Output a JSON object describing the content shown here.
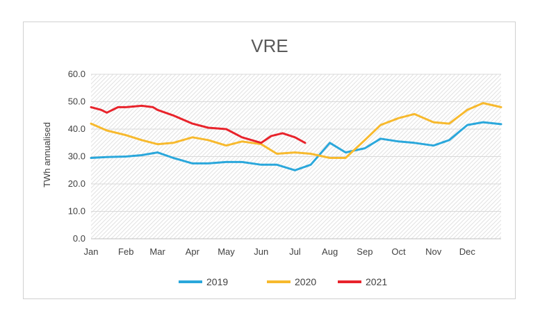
{
  "chart_data": {
    "type": "line",
    "title": "VRE",
    "xlabel": "",
    "ylabel": "TWh annualised",
    "ylim": [
      0,
      60
    ],
    "yticks": [
      "0.0",
      "10.0",
      "20.0",
      "30.0",
      "40.0",
      "50.0",
      "60.0"
    ],
    "x_axis_type": "date",
    "x_tick_labels": [
      "Jan",
      "Feb",
      "Mar",
      "Apr",
      "May",
      "Jun",
      "Jul",
      "Aug",
      "Sep",
      "Oct",
      "Nov",
      "Dec"
    ],
    "grid": true,
    "plot_background": "diagonal hatch",
    "legend_position": "bottom",
    "series": [
      {
        "name": "2019",
        "color": "#2aa7db",
        "x": [
          "01-01",
          "01-15",
          "02-01",
          "02-15",
          "03-01",
          "03-15",
          "04-01",
          "04-15",
          "05-01",
          "05-15",
          "06-01",
          "06-15",
          "07-01",
          "07-15",
          "08-01",
          "08-15",
          "09-01",
          "09-15",
          "10-01",
          "10-15",
          "11-01",
          "11-15",
          "12-01",
          "12-15",
          "12-31"
        ],
        "values": [
          29.5,
          29.8,
          30.0,
          30.5,
          31.5,
          29.5,
          27.5,
          27.5,
          28.0,
          28.0,
          27.0,
          27.0,
          25.0,
          27.0,
          35.0,
          31.5,
          33.0,
          36.5,
          35.5,
          35.0,
          34.0,
          36.0,
          41.5,
          42.5,
          41.8
        ]
      },
      {
        "name": "2020",
        "color": "#f7b92d",
        "x": [
          "01-01",
          "01-15",
          "02-01",
          "02-15",
          "03-01",
          "03-15",
          "04-01",
          "04-15",
          "05-01",
          "05-15",
          "06-01",
          "06-15",
          "07-01",
          "07-15",
          "08-01",
          "08-15",
          "09-01",
          "09-15",
          "10-01",
          "10-15",
          "11-01",
          "11-15",
          "12-01",
          "12-15",
          "12-31"
        ],
        "values": [
          42.0,
          39.5,
          37.8,
          36.0,
          34.5,
          35.0,
          37.0,
          36.0,
          34.0,
          35.5,
          34.5,
          31.0,
          31.5,
          31.0,
          29.5,
          29.5,
          36.0,
          41.5,
          44.0,
          45.5,
          42.5,
          42.0,
          47.0,
          49.5,
          48.0
        ]
      },
      {
        "name": "2021",
        "color": "#e8232b",
        "x": [
          "01-01",
          "01-10",
          "01-15",
          "01-25",
          "02-01",
          "02-15",
          "02-25",
          "03-01",
          "03-15",
          "04-01",
          "04-15",
          "05-01",
          "05-15",
          "06-01",
          "06-10",
          "06-20",
          "07-01",
          "07-10"
        ],
        "values": [
          48.0,
          47.0,
          46.0,
          48.0,
          48.0,
          48.5,
          48.0,
          47.0,
          45.0,
          42.0,
          40.5,
          40.0,
          37.0,
          35.0,
          37.5,
          38.5,
          37.0,
          35.0
        ]
      }
    ]
  }
}
